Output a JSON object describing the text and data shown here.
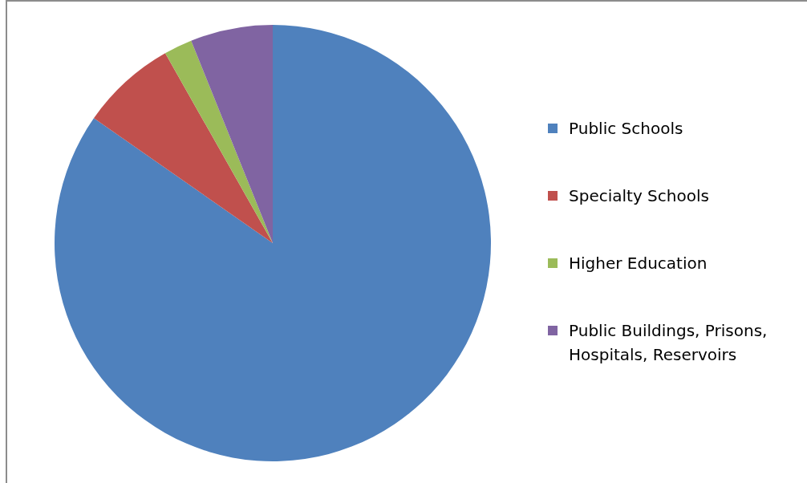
{
  "chart_data": {
    "type": "pie",
    "categories": [
      "Public Schools",
      "Specialty Schools",
      "Higher Education",
      "Public Buildings, Prisons, Hospitals, Reservoirs"
    ],
    "values": [
      84.7,
      7.1,
      2.1,
      6.1
    ],
    "colors": [
      "#4f81bd",
      "#c0504d",
      "#9bbb59",
      "#8064a2"
    ],
    "legend": "right"
  }
}
